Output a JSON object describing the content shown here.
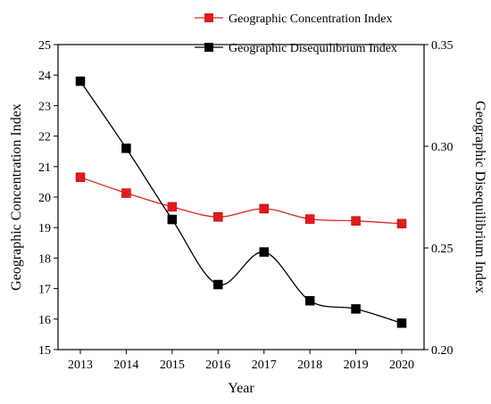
{
  "chart_data": {
    "type": "line",
    "x": [
      "2013",
      "2014",
      "2015",
      "2016",
      "2017",
      "2018",
      "2019",
      "2020"
    ],
    "xlabel": "Year",
    "ylabel_left": "Geographic Concentration Index",
    "ylabel_right": "Geographic Disequilibrium Index",
    "ylim_left": [
      15,
      25
    ],
    "ylim_right": [
      0.2,
      0.35
    ],
    "yticks_left": [
      "15",
      "16",
      "17",
      "18",
      "19",
      "20",
      "21",
      "22",
      "23",
      "24",
      "25"
    ],
    "yticks_right": [
      "0.20",
      "0.25",
      "0.30",
      "0.35"
    ],
    "legend_position": "top-center",
    "grid": false,
    "series": [
      {
        "name": "Geographic Concentration Index",
        "axis": "left",
        "color": "#e31a1c",
        "line_color": "#d62728",
        "values": [
          20.65,
          20.13,
          19.68,
          19.35,
          19.62,
          19.28,
          19.22,
          19.13
        ]
      },
      {
        "name": "Geographic Disequilibrium Index",
        "axis": "right",
        "color": "#000000",
        "line_color": "#000000",
        "values": [
          0.332,
          0.299,
          0.264,
          0.232,
          0.248,
          0.224,
          0.22,
          0.213
        ]
      }
    ]
  }
}
